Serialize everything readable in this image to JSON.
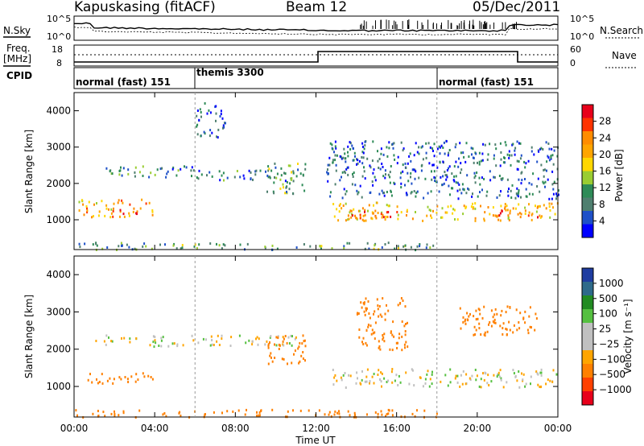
{
  "header": {
    "station": "Kapuskasing (fitACF)",
    "beam": "Beam 12",
    "date": "05/Dec/2011"
  },
  "noise_panel": {
    "left_label": "N.Sky",
    "right_label": "N.Search",
    "left_ticks": [
      "10^5",
      "10^0"
    ],
    "right_ticks": [
      "10^5",
      "10^0"
    ]
  },
  "freq_panel": {
    "left_label_1": "Freq.",
    "left_label_2": "[MHz]",
    "left_ticks": [
      "18",
      "8"
    ],
    "right_label": "Nave",
    "right_ticks": [
      "60",
      "0"
    ]
  },
  "cpid_panel": {
    "label": "CPID",
    "segments": [
      {
        "text": "normal (fast) 151",
        "start_hour": 0,
        "end_hour": 6
      },
      {
        "text": "themis 3300",
        "start_hour": 6,
        "end_hour": 18
      },
      {
        "text": "normal (fast) 151",
        "start_hour": 18,
        "end_hour": 24
      }
    ]
  },
  "power_panel": {
    "ylabel": "Slant Range [km]",
    "colorbar_label": "Power [dB]",
    "colorbar_ticks": [
      "28",
      "24",
      "20",
      "16",
      "12",
      "8",
      "4"
    ],
    "colorbar_colors": [
      "#e8001a",
      "#ff3300",
      "#ff8c00",
      "#ffa500",
      "#ffd700",
      "#9acd32",
      "#2e8b57",
      "#4f7f6f",
      "#1e50c8",
      "#0000ff"
    ]
  },
  "velocity_panel": {
    "ylabel": "Slant Range [km]",
    "colorbar_label": "Velocity [m s⁻¹]",
    "colorbar_ticks": [
      "1000",
      "500",
      "100",
      "25",
      "−25",
      "−100",
      "−500",
      "−1000"
    ],
    "colorbar_colors": [
      "#1e3ca0",
      "#2e6a8a",
      "#228b22",
      "#55c040",
      "#c0c0c0",
      "#c0c0c0",
      "#ffa500",
      "#ff8000",
      "#ff4000",
      "#e8001a"
    ]
  },
  "x_axis": {
    "label": "Time UT",
    "ticks": [
      "00:00",
      "04:00",
      "08:00",
      "12:00",
      "16:00",
      "20:00",
      "00:00"
    ]
  },
  "chart_data": {
    "type": "heatmap",
    "title": "Kapuskasing (fitACF)  Beam 12  05/Dec/2011",
    "xlabel": "Time UT",
    "ylabel": "Slant Range [km]",
    "xlim_hours": [
      0,
      24
    ],
    "ylim_km": [
      180,
      4500
    ],
    "y_ticks": [
      1000,
      2000,
      3000,
      4000
    ],
    "power": {
      "colorbar_range_db": [
        0,
        30
      ],
      "regions": [
        {
          "t0": 0.2,
          "t1": 4.0,
          "r0": 1100,
          "r1": 1600,
          "db": 20
        },
        {
          "t0": 1.8,
          "t1": 3.2,
          "r0": 1150,
          "r1": 1300,
          "db": 26
        },
        {
          "t0": 0.8,
          "t1": 6.0,
          "r0": 2200,
          "r1": 2500,
          "db": 8
        },
        {
          "t0": 6.0,
          "t1": 11.0,
          "r0": 2100,
          "r1": 2400,
          "db": 8
        },
        {
          "t0": 6.0,
          "t1": 7.5,
          "r0": 3300,
          "r1": 4300,
          "db": 6
        },
        {
          "t0": 9.5,
          "t1": 11.5,
          "r0": 1700,
          "r1": 2600,
          "db": 10
        },
        {
          "t0": 12.8,
          "t1": 24.0,
          "r0": 1000,
          "r1": 1500,
          "db": 18
        },
        {
          "t0": 13.5,
          "t1": 16.0,
          "r0": 1000,
          "r1": 1300,
          "db": 24
        },
        {
          "t0": 20.5,
          "t1": 23.0,
          "r0": 1100,
          "r1": 1400,
          "db": 24
        },
        {
          "t0": 12.5,
          "t1": 24.0,
          "r0": 1600,
          "r1": 3200,
          "db": 6
        },
        {
          "t0": 0.0,
          "t1": 18.0,
          "r0": 200,
          "r1": 400,
          "db": 10
        }
      ]
    },
    "velocity": {
      "colorbar_ticks_ms": [
        1000,
        500,
        100,
        25,
        -25,
        -100,
        -500,
        -1000
      ],
      "regions": [
        {
          "t0": 0.5,
          "t1": 4.0,
          "r0": 1100,
          "r1": 1400,
          "v": -200
        },
        {
          "t0": 1.0,
          "t1": 11.0,
          "r0": 2100,
          "r1": 2400,
          "v": 0
        },
        {
          "t0": 9.5,
          "t1": 11.5,
          "r0": 1600,
          "r1": 2400,
          "v": -300
        },
        {
          "t0": 12.8,
          "t1": 24.0,
          "r0": 1000,
          "r1": 1500,
          "v": 0
        },
        {
          "t0": 14.0,
          "t1": 16.5,
          "r0": 2000,
          "r1": 3400,
          "v": -300
        },
        {
          "t0": 19.0,
          "t1": 23.0,
          "r0": 2400,
          "r1": 3200,
          "v": -200
        },
        {
          "t0": 0.0,
          "t1": 18.0,
          "r0": 200,
          "r1": 400,
          "v": -400
        }
      ]
    }
  }
}
